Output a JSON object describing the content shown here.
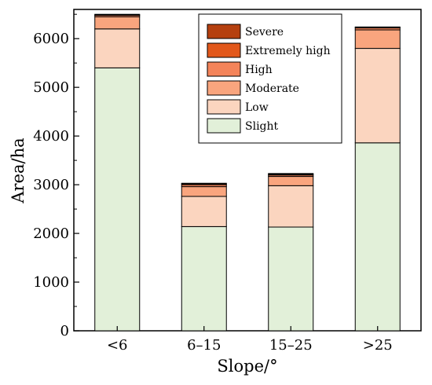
{
  "chart_data": {
    "type": "bar",
    "stacked": true,
    "categories": [
      "<6",
      "6–15",
      "15–25",
      ">25"
    ],
    "xlabel": "Slope/°",
    "ylabel": "Area/ha",
    "ylim": [
      0,
      6600
    ],
    "yticks": [
      0,
      1000,
      2000,
      3000,
      4000,
      5000,
      6000
    ],
    "grid": false,
    "legend_position": "top-right",
    "series": [
      {
        "name": "Slight",
        "color": "#e2f0d9",
        "values": [
          5400,
          2140,
          2130,
          3860
        ]
      },
      {
        "name": "Low",
        "color": "#fbd5bf",
        "values": [
          800,
          620,
          850,
          1940
        ]
      },
      {
        "name": "Moderate",
        "color": "#f9a57e",
        "values": [
          250,
          200,
          190,
          380
        ]
      },
      {
        "name": "High",
        "color": "#f4845a",
        "values": [
          30,
          40,
          30,
          40
        ]
      },
      {
        "name": "Extremely high",
        "color": "#e2581b",
        "values": [
          10,
          20,
          15,
          10
        ]
      },
      {
        "name": "Severe",
        "color": "#b5400f",
        "values": [
          10,
          10,
          15,
          10
        ]
      }
    ],
    "legend_order": [
      "Severe",
      "Extremely high",
      "High",
      "Moderate",
      "Low",
      "Slight"
    ]
  }
}
